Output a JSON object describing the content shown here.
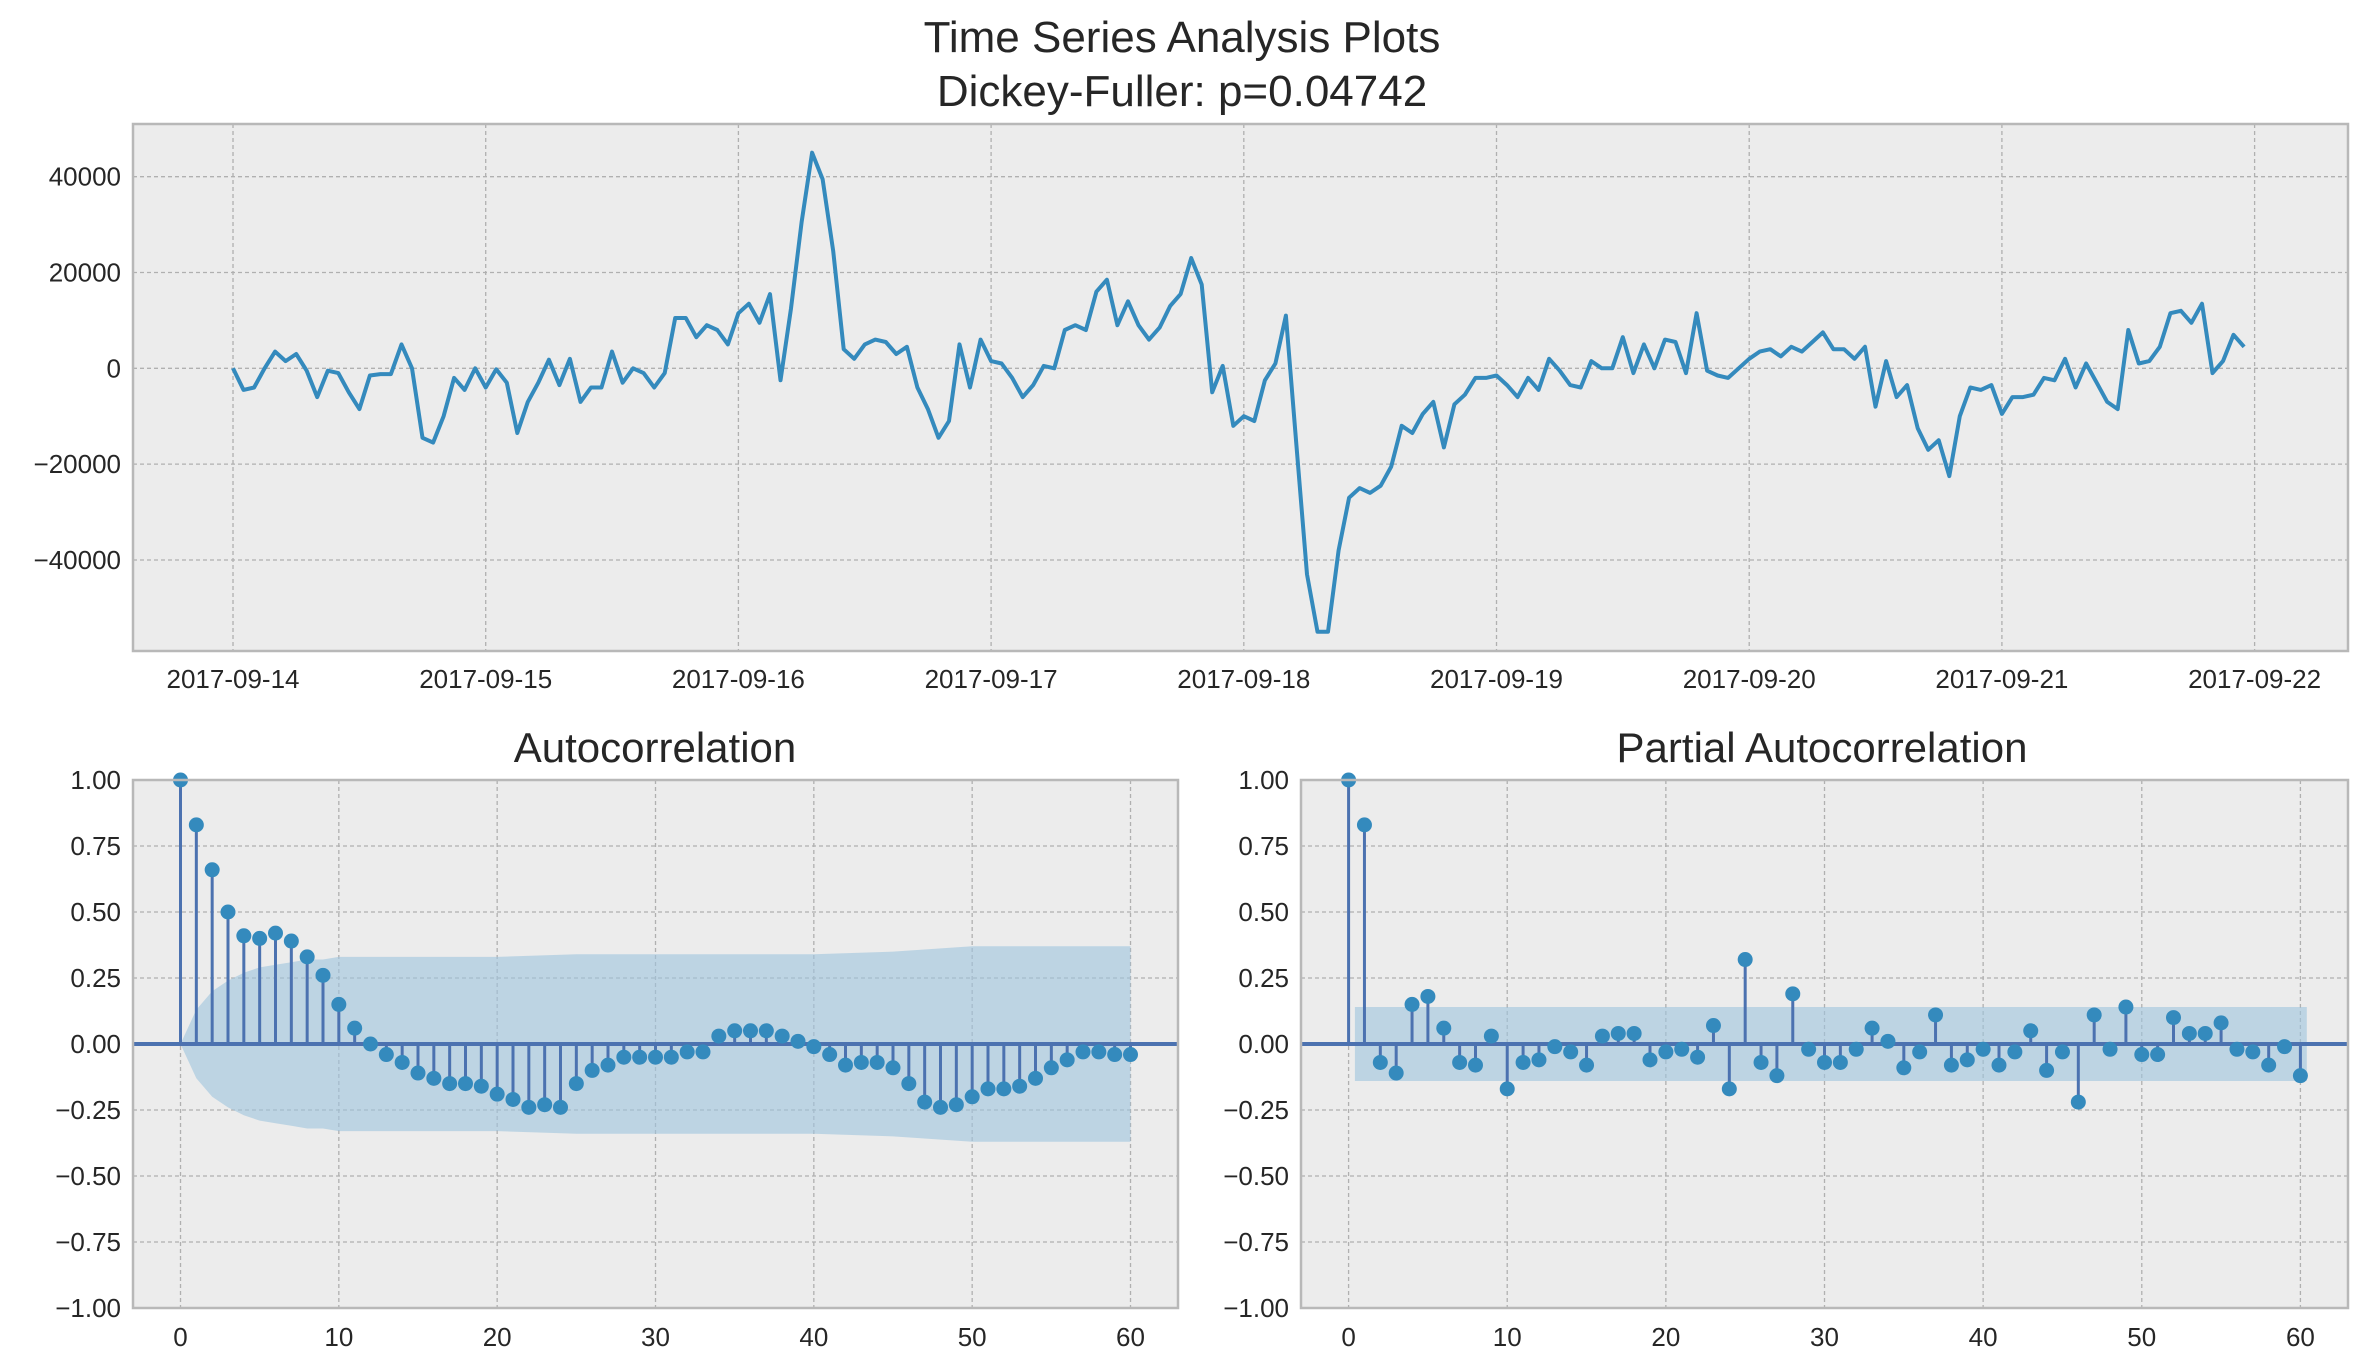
{
  "figure": {
    "title_line1": "Time Series Analysis Plots",
    "title_line2": "Dickey-Fuller: p=0.04742"
  },
  "colors": {
    "background": "#ececec",
    "frame": "#b8b8b8",
    "grid": "#b0b0b0",
    "line": "#348abd",
    "stem": "#4c72b0",
    "marker": "#348abd",
    "band": "#9ec4de"
  },
  "chart_data": [
    {
      "id": "timeseries",
      "type": "line",
      "title": "Time Series Analysis Plots\nDickey-Fuller: p=0.04742",
      "xlabel": "",
      "ylabel": "",
      "x_ticks": [
        "2017-09-14",
        "2017-09-15",
        "2017-09-16",
        "2017-09-17",
        "2017-09-18",
        "2017-09-19",
        "2017-09-20",
        "2017-09-21",
        "2017-09-22"
      ],
      "y_ticks": [
        40000,
        20000,
        0,
        -20000,
        -40000
      ],
      "ylim": [
        -59000,
        51000
      ],
      "x_start": "2017-09-14 00:00",
      "x_end": "2017-09-21 23:00",
      "frequency": "hourly",
      "grid": true,
      "series": [
        {
          "values": [
            0,
            -4500,
            -4000,
            0,
            3500,
            1500,
            3000,
            -500,
            -6000,
            -500,
            -1000,
            -5000,
            -8500,
            -1500,
            -1200,
            -1200,
            5000,
            0,
            -14500,
            -15500,
            -10000,
            -2000,
            -4500,
            0,
            -4000,
            -200,
            -3000,
            -13500,
            -7000,
            -3000,
            1800,
            -3500,
            2000,
            -7000,
            -4000,
            -4000,
            3500,
            -3000,
            0,
            -1000,
            -4000,
            -1000,
            10500,
            10500,
            6500,
            9000,
            8000,
            5000,
            11500,
            13500,
            9500,
            15500,
            -2500,
            12500,
            30500,
            45000,
            39500,
            24500,
            4000,
            2000,
            5000,
            6000,
            5500,
            3000,
            4500,
            -4000,
            -8500,
            -14500,
            -11000,
            5000,
            -4000,
            6000,
            1500,
            1000,
            -2000,
            -6000,
            -3500,
            500,
            0,
            8000,
            9000,
            8000,
            16000,
            18500,
            9000,
            14000,
            9000,
            6000,
            8500,
            13000,
            15500,
            23000,
            17500,
            -5000,
            500,
            -12000,
            -10000,
            -11000,
            -2500,
            1000,
            11000,
            -16000,
            -43000,
            -55000,
            -55000,
            -38000,
            -27000,
            -25000,
            -26000,
            -24500,
            -20500,
            -12000,
            -13500,
            -9500,
            -7000,
            -16500,
            -7500,
            -5500,
            -2000,
            -2000,
            -1500,
            -3500,
            -6000,
            -2000,
            -4500,
            2000,
            -500,
            -3500,
            -4000,
            1500,
            0,
            0,
            6500,
            -1000,
            5000,
            0,
            6000,
            5500,
            -1000,
            11500,
            -500,
            -1500,
            -2000,
            0,
            2000,
            3500,
            4000,
            2500,
            4500,
            3500,
            5500,
            7500,
            4000,
            4000,
            2000,
            4500,
            -8000,
            1500,
            -6000,
            -3500,
            -12500,
            -17000,
            -15000,
            -22500,
            -10000,
            -4000,
            -4500,
            -3500,
            -9500,
            -6000,
            -6000,
            -5500,
            -2000,
            -2500,
            2000,
            -4000,
            1000,
            -3000,
            -7000,
            -8500,
            8000,
            1000,
            1500,
            4500,
            11500,
            12000,
            9500,
            13500,
            -1000,
            1500,
            7000,
            4500
          ]
        }
      ]
    },
    {
      "id": "acf",
      "type": "scatter",
      "title": "Autocorrelation",
      "xlabel": "",
      "ylabel": "",
      "x_ticks": [
        0,
        10,
        20,
        30,
        40,
        50,
        60
      ],
      "y_ticks": [
        1.0,
        0.75,
        0.5,
        0.25,
        0.0,
        -0.25,
        -0.5,
        -0.75,
        -1.0
      ],
      "y_tick_labels": [
        "1.00",
        "0.75",
        "0.50",
        "0.25",
        "0.00",
        "−0.25",
        "−0.50",
        "−0.75",
        "−1.00"
      ],
      "x_tick_labels": [
        "0",
        "10",
        "20",
        "30",
        "40",
        "50",
        "60"
      ],
      "xlim": [
        -3,
        63
      ],
      "ylim": [
        -1,
        1
      ],
      "grid": true,
      "lags": [
        0,
        1,
        2,
        3,
        4,
        5,
        6,
        7,
        8,
        9,
        10,
        11,
        12,
        13,
        14,
        15,
        16,
        17,
        18,
        19,
        20,
        21,
        22,
        23,
        24,
        25,
        26,
        27,
        28,
        29,
        30,
        31,
        32,
        33,
        34,
        35,
        36,
        37,
        38,
        39,
        40,
        41,
        42,
        43,
        44,
        45,
        46,
        47,
        48,
        49,
        50,
        51,
        52,
        53,
        54,
        55,
        56,
        57,
        58,
        59,
        60
      ],
      "values": [
        1.0,
        0.83,
        0.66,
        0.5,
        0.41,
        0.4,
        0.42,
        0.39,
        0.33,
        0.26,
        0.15,
        0.06,
        0.0,
        -0.04,
        -0.07,
        -0.11,
        -0.13,
        -0.15,
        -0.15,
        -0.16,
        -0.19,
        -0.21,
        -0.24,
        -0.23,
        -0.24,
        -0.15,
        -0.1,
        -0.08,
        -0.05,
        -0.05,
        -0.05,
        -0.05,
        -0.03,
        -0.03,
        0.03,
        0.05,
        0.05,
        0.05,
        0.03,
        0.01,
        -0.01,
        -0.04,
        -0.08,
        -0.07,
        -0.07,
        -0.09,
        -0.15,
        -0.22,
        -0.24,
        -0.23,
        -0.2,
        -0.17,
        -0.17,
        -0.16,
        -0.13,
        -0.09,
        -0.06,
        -0.03,
        -0.03,
        -0.04,
        -0.04
      ],
      "confidence_band": {
        "lags": [
          0,
          1,
          2,
          3,
          4,
          5,
          6,
          7,
          8,
          9,
          10,
          11,
          12,
          13,
          14,
          15,
          20,
          25,
          30,
          35,
          40,
          45,
          50,
          55,
          60
        ],
        "upper": [
          0.0,
          0.13,
          0.2,
          0.24,
          0.27,
          0.29,
          0.3,
          0.31,
          0.32,
          0.32,
          0.33,
          0.33,
          0.33,
          0.33,
          0.33,
          0.33,
          0.33,
          0.34,
          0.34,
          0.34,
          0.34,
          0.35,
          0.37,
          0.37,
          0.37
        ]
      }
    },
    {
      "id": "pacf",
      "type": "scatter",
      "title": "Partial Autocorrelation",
      "xlabel": "",
      "ylabel": "",
      "x_ticks": [
        0,
        10,
        20,
        30,
        40,
        50,
        60
      ],
      "y_ticks": [
        1.0,
        0.75,
        0.5,
        0.25,
        0.0,
        -0.25,
        -0.5,
        -0.75,
        -1.0
      ],
      "y_tick_labels": [
        "1.00",
        "0.75",
        "0.50",
        "0.25",
        "0.00",
        "−0.25",
        "−0.50",
        "−0.75",
        "−1.00"
      ],
      "x_tick_labels": [
        "0",
        "10",
        "20",
        "30",
        "40",
        "50",
        "60"
      ],
      "xlim": [
        -3,
        63
      ],
      "ylim": [
        -1,
        1
      ],
      "grid": true,
      "lags": [
        0,
        1,
        2,
        3,
        4,
        5,
        6,
        7,
        8,
        9,
        10,
        11,
        12,
        13,
        14,
        15,
        16,
        17,
        18,
        19,
        20,
        21,
        22,
        23,
        24,
        25,
        26,
        27,
        28,
        29,
        30,
        31,
        32,
        33,
        34,
        35,
        36,
        37,
        38,
        39,
        40,
        41,
        42,
        43,
        44,
        45,
        46,
        47,
        48,
        49,
        50,
        51,
        52,
        53,
        54,
        55,
        56,
        57,
        58,
        59,
        60
      ],
      "values": [
        1.0,
        0.83,
        -0.07,
        -0.11,
        0.15,
        0.18,
        0.06,
        -0.07,
        -0.08,
        0.03,
        -0.17,
        -0.07,
        -0.06,
        -0.01,
        -0.03,
        -0.08,
        0.03,
        0.04,
        0.04,
        -0.06,
        -0.03,
        -0.02,
        -0.05,
        0.07,
        -0.17,
        0.32,
        -0.07,
        -0.12,
        0.19,
        -0.02,
        -0.07,
        -0.07,
        -0.02,
        0.06,
        0.01,
        -0.09,
        -0.03,
        0.11,
        -0.08,
        -0.06,
        -0.02,
        -0.08,
        -0.03,
        0.05,
        -0.1,
        -0.03,
        -0.22,
        0.11,
        -0.02,
        0.14,
        -0.04,
        -0.04,
        0.1,
        0.04,
        0.04,
        0.08,
        -0.02,
        -0.03,
        -0.08,
        -0.01,
        -0.12
      ],
      "confidence_band": {
        "lags": [
          0.4,
          60.4
        ],
        "upper": [
          0.14,
          0.14
        ]
      }
    }
  ]
}
